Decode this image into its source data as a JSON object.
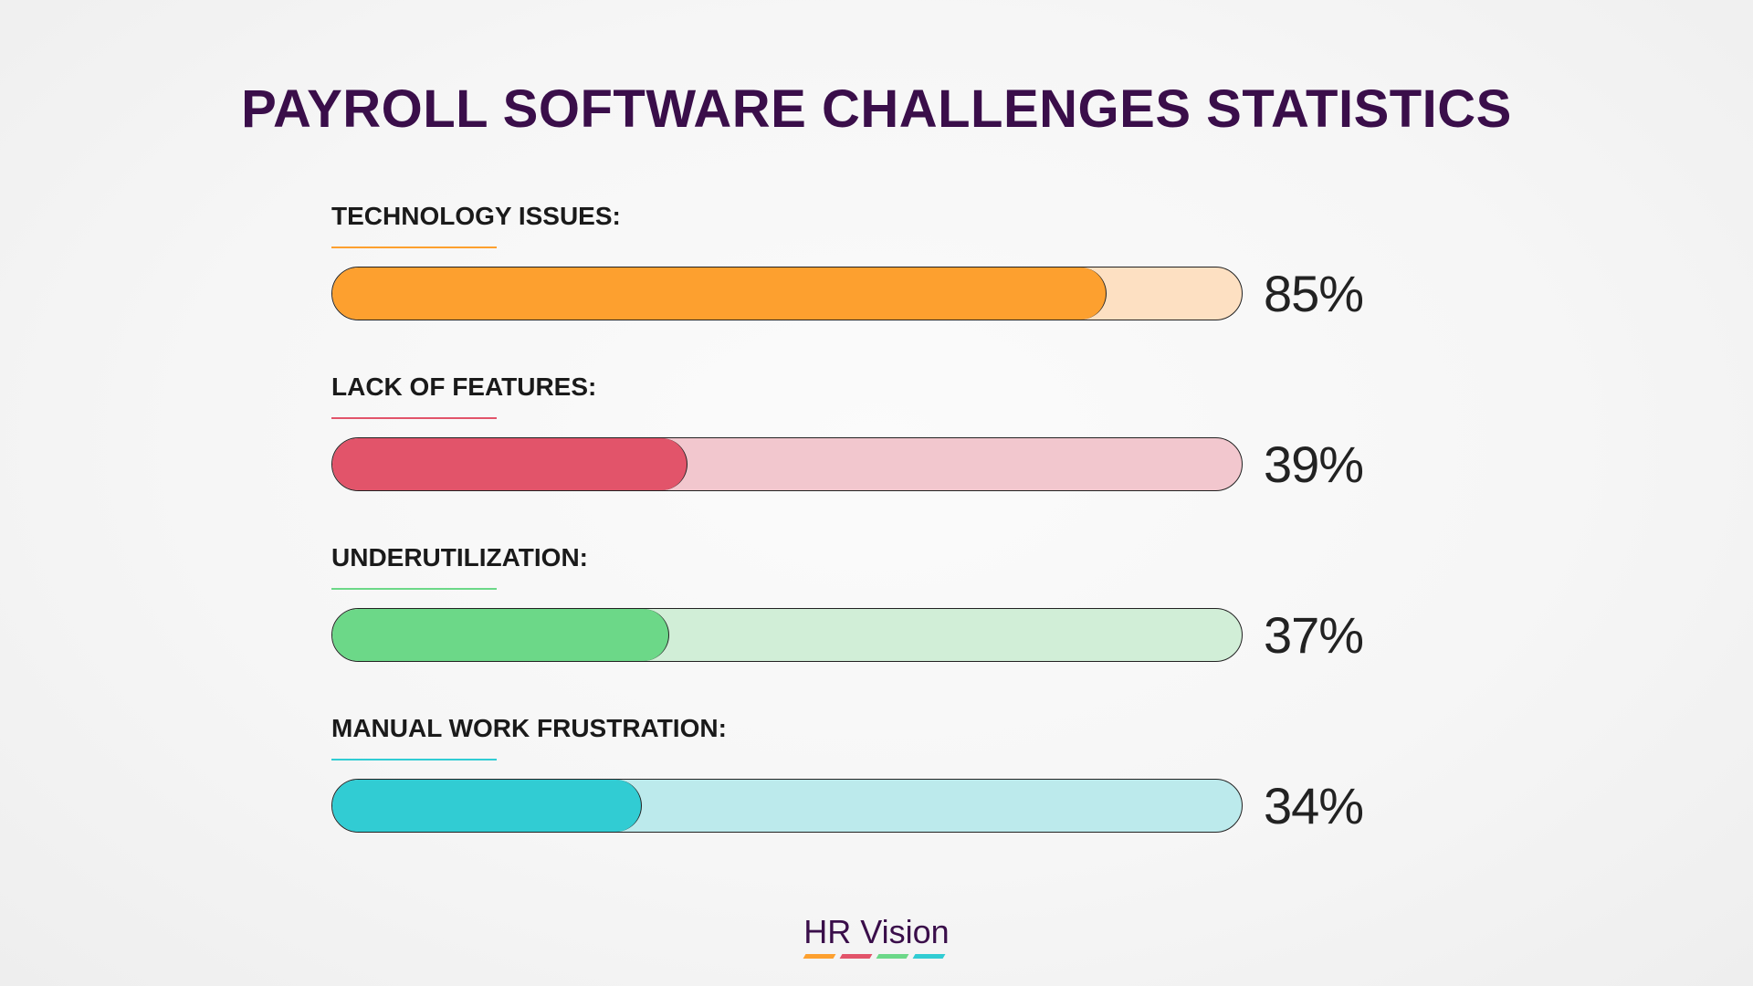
{
  "chart_data": {
    "type": "bar",
    "orientation": "horizontal",
    "title": "PAYROLL SOFTWARE CHALLENGES STATISTICS",
    "categories": [
      "TECHNOLOGY ISSUES:",
      "LACK OF FEATURES:",
      "UNDERUTILIZATION:",
      "MANUAL WORK FRUSTRATION:"
    ],
    "values": [
      85,
      39,
      37,
      34
    ],
    "value_labels": [
      "85%",
      "39%",
      "37%",
      "34%"
    ],
    "unit": "%",
    "xlim": [
      0,
      100
    ],
    "grid": false,
    "colors": [
      "#fda02f",
      "#e2546a",
      "#6cd888",
      "#31ccd3"
    ],
    "track_colors": [
      "#fde0c2",
      "#f2c7ce",
      "#d1eed7",
      "#bceaec"
    ]
  },
  "brand": {
    "name": "HR Vision",
    "stripe_colors": [
      "#fda02f",
      "#e2546a",
      "#6cd888",
      "#31ccd3"
    ]
  }
}
